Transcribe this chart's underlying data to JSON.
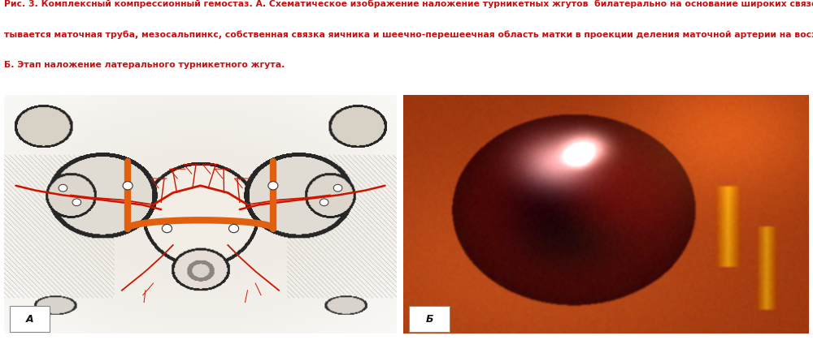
{
  "caption_line1": "Рис. 3. Комплексный компрессионный гемостаз. А. Схематическое изображение наложение турникетных жгутов  билатерально на основание широких связок, где таким образом захва-",
  "caption_line2": "тывается маточная труба, мезосальпинкс, собственная связка яичника и шеечно-перешеечная область матки в проекции деления маточной артерии на восходящую и нисходящую ветвь.",
  "caption_line3": "Б. Этап наложение латерального турникетного жгута.",
  "caption_color": "#c41010",
  "caption_fontsize": 7.8,
  "background_color": "#ffffff",
  "panel_A_label": "А",
  "panel_B_label": "Б",
  "label_fontsize": 9,
  "fig_width": 10.0,
  "fig_height": 4.19
}
